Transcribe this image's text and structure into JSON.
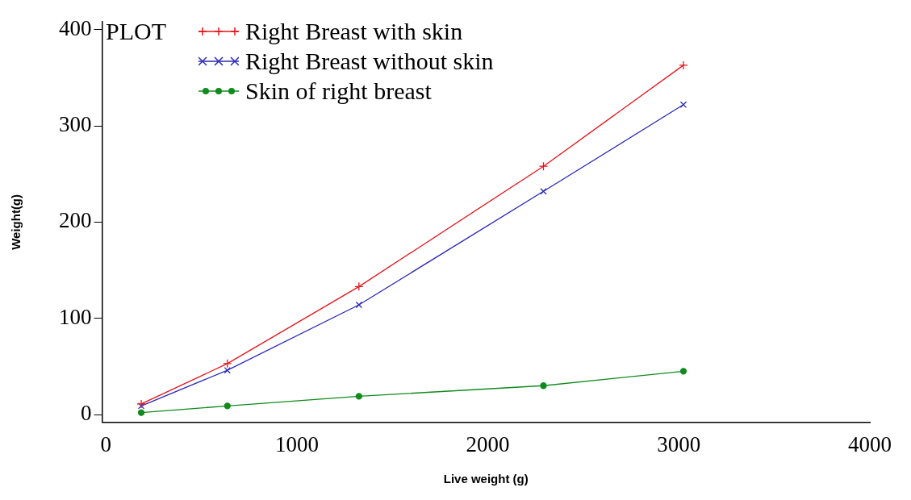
{
  "chart_data": {
    "type": "line",
    "xlabel": "Live weight (g)",
    "ylabel": "Weight(g)",
    "legend_title": "PLOT",
    "legend": "top left",
    "grid": false,
    "x": [
      185,
      636,
      1325,
      2291,
      3024
    ],
    "xlim": [
      -20,
      4000
    ],
    "xticks": [
      0,
      1000,
      2000,
      3000,
      4000
    ],
    "ylim": [
      -8,
      408
    ],
    "yticks": [
      0,
      100,
      200,
      300,
      400
    ],
    "series": [
      {
        "name": "Right Breast with skin",
        "color": "#e8141c",
        "marker": "cross",
        "values": [
          11,
          53,
          133,
          258,
          363
        ]
      },
      {
        "name": "Right Breast without skin",
        "color": "#2a2ab8",
        "marker": "cross",
        "values": [
          9,
          46,
          114,
          232,
          322
        ]
      },
      {
        "name": "Skin of right breast",
        "color": "#118a1e",
        "marker": "circle",
        "values": [
          2,
          9,
          19,
          30,
          45
        ]
      }
    ]
  }
}
